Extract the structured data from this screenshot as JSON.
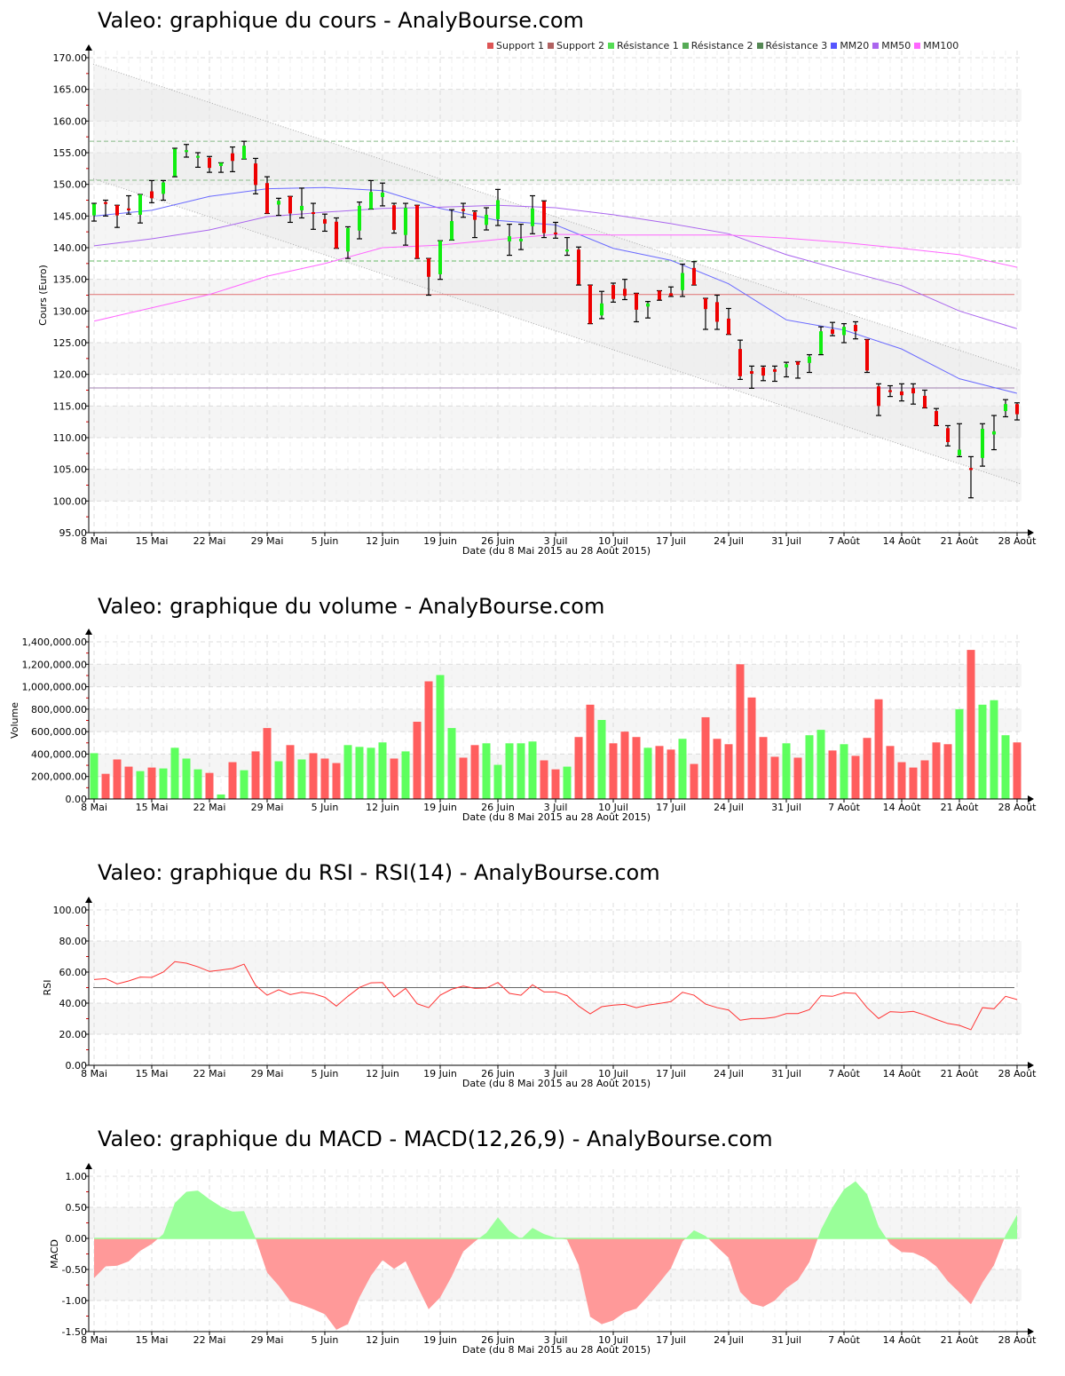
{
  "titles": {
    "price": "Valeo: graphique du cours - AnalyBourse.com",
    "volume": "Valeo: graphique du volume - AnalyBourse.com",
    "rsi": "Valeo: graphique du RSI - RSI(14) - AnalyBourse.com",
    "macd": "Valeo: graphique du MACD - MACD(12,26,9) - AnalyBourse.com"
  },
  "legend": [
    {
      "label": "Support 1",
      "color": "#dd5555"
    },
    {
      "label": "Support 2",
      "color": "#b06262"
    },
    {
      "label": "Résistance 1",
      "color": "#55dd55"
    },
    {
      "label": "Résistance 2",
      "color": "#55aa55"
    },
    {
      "label": "Résistance 3",
      "color": "#558855"
    },
    {
      "label": "MM20",
      "color": "#5555ff"
    },
    {
      "label": "MM50",
      "color": "#aa66ee"
    },
    {
      "label": "MM100",
      "color": "#ff66ff"
    }
  ],
  "chart_data": [
    {
      "type": "candlestick",
      "title": "Valeo: graphique du cours - AnalyBourse.com",
      "xlabel": "Date (du 8 Mai 2015 au 28 Août 2015)",
      "ylabel": "Cours (Euro)",
      "ylim": [
        95,
        170
      ],
      "yticks": [
        "170.00",
        "165.00",
        "160.00",
        "155.00",
        "150.00",
        "145.00",
        "140.00",
        "135.00",
        "130.00",
        "125.00",
        "120.00",
        "115.00",
        "110.00",
        "105.00",
        "100.00",
        "95.00"
      ],
      "x_ticks": [
        "8 Mai",
        "15 Mai",
        "22 Mai",
        "29 Mai",
        "5 Juin",
        "12 Juin",
        "19 Juin",
        "26 Juin",
        "3 Juil",
        "10 Juil",
        "17 Juil",
        "24 Juil",
        "31 Juil",
        "7 Août",
        "14 Août",
        "21 Août",
        "28 Août"
      ],
      "ohlc_fields": [
        "open",
        "high",
        "low",
        "close"
      ],
      "ohlc": [
        [
          145.1,
          147.0,
          144.2,
          146.9
        ],
        [
          147.2,
          147.5,
          145.0,
          146.9
        ],
        [
          146.7,
          146.7,
          143.2,
          145.1
        ],
        [
          146.2,
          148.2,
          145.3,
          145.9
        ],
        [
          145.2,
          148.4,
          143.9,
          148.4
        ],
        [
          148.9,
          150.6,
          147.1,
          147.8
        ],
        [
          148.5,
          150.6,
          147.5,
          150.3
        ],
        [
          151.3,
          155.7,
          151.2,
          155.6
        ],
        [
          155.1,
          156.3,
          154.3,
          155.4
        ],
        [
          154.2,
          155.0,
          152.7,
          154.5
        ],
        [
          154.2,
          154.4,
          151.9,
          152.6
        ],
        [
          152.9,
          153.4,
          151.9,
          153.4
        ],
        [
          154.9,
          155.9,
          152.0,
          153.7
        ],
        [
          154.0,
          156.8,
          154.0,
          156.1
        ],
        [
          153.3,
          154.1,
          148.5,
          149.9
        ],
        [
          150.2,
          151.2,
          145.4,
          145.4
        ],
        [
          146.8,
          147.8,
          145.1,
          147.4
        ],
        [
          148.1,
          148.1,
          144.0,
          145.4
        ],
        [
          145.9,
          149.4,
          144.7,
          146.6
        ],
        [
          145.6,
          147.0,
          142.9,
          145.4
        ],
        [
          144.5,
          145.3,
          142.6,
          143.8
        ],
        [
          144.1,
          144.7,
          139.9,
          139.9
        ],
        [
          139.4,
          143.3,
          138.3,
          143.1
        ],
        [
          142.7,
          147.2,
          141.4,
          146.6
        ],
        [
          146.1,
          150.6,
          146.1,
          148.8
        ],
        [
          148.0,
          150.2,
          146.6,
          148.7
        ],
        [
          146.7,
          147.0,
          142.3,
          142.8
        ],
        [
          142.0,
          147.0,
          140.4,
          146.3
        ],
        [
          146.7,
          146.7,
          138.3,
          138.3
        ],
        [
          138.3,
          138.3,
          132.5,
          135.4
        ],
        [
          135.8,
          141.1,
          135.0,
          141.1
        ],
        [
          141.2,
          146.0,
          141.2,
          144.2
        ],
        [
          146.1,
          147.0,
          144.8,
          145.8
        ],
        [
          145.6,
          145.8,
          141.6,
          144.4
        ],
        [
          143.6,
          146.3,
          142.8,
          145.2
        ],
        [
          144.5,
          149.2,
          143.5,
          147.5
        ],
        [
          141.0,
          143.7,
          138.8,
          141.8
        ],
        [
          141.0,
          143.7,
          139.7,
          141.4
        ],
        [
          143.4,
          148.2,
          142.2,
          146.2
        ],
        [
          147.3,
          147.4,
          141.6,
          142.3
        ],
        [
          142.4,
          144.0,
          141.5,
          142.2
        ],
        [
          139.4,
          141.6,
          138.8,
          139.7
        ],
        [
          139.7,
          140.1,
          134.1,
          134.2
        ],
        [
          134.1,
          134.1,
          128.0,
          128.0
        ],
        [
          129.3,
          133.1,
          128.8,
          131.2
        ],
        [
          134.1,
          134.4,
          131.4,
          131.9
        ],
        [
          133.5,
          135.0,
          131.8,
          132.4
        ],
        [
          132.8,
          132.8,
          128.3,
          130.2
        ],
        [
          130.7,
          131.5,
          128.9,
          131.2
        ],
        [
          133.2,
          133.2,
          131.7,
          131.8
        ],
        [
          132.8,
          133.8,
          132.3,
          132.4
        ],
        [
          133.3,
          137.4,
          132.3,
          136.0
        ],
        [
          136.8,
          137.8,
          134.1,
          134.1
        ],
        [
          132.0,
          132.0,
          127.1,
          130.3
        ],
        [
          131.4,
          132.5,
          127.1,
          128.3
        ],
        [
          128.8,
          130.4,
          126.3,
          126.3
        ],
        [
          124.0,
          125.4,
          119.2,
          119.7
        ],
        [
          120.5,
          121.3,
          117.8,
          120.1
        ],
        [
          121.1,
          121.3,
          119.0,
          119.8
        ],
        [
          120.8,
          121.3,
          118.9,
          120.4
        ],
        [
          121.1,
          121.9,
          119.6,
          121.6
        ],
        [
          122.0,
          122.0,
          119.4,
          121.5
        ],
        [
          121.8,
          123.1,
          120.3,
          122.8
        ],
        [
          123.2,
          127.5,
          123.1,
          126.8
        ],
        [
          127.1,
          128.2,
          126.1,
          126.4
        ],
        [
          126.2,
          128.0,
          125.0,
          127.5
        ],
        [
          127.8,
          128.3,
          125.6,
          126.8
        ],
        [
          125.5,
          125.5,
          120.3,
          120.6
        ],
        [
          118.1,
          118.5,
          113.5,
          115.0
        ],
        [
          117.5,
          118.2,
          116.5,
          117.2
        ],
        [
          117.3,
          118.5,
          115.8,
          116.7
        ],
        [
          117.8,
          118.5,
          115.3,
          117.0
        ],
        [
          116.6,
          117.5,
          114.7,
          114.7
        ],
        [
          114.2,
          114.6,
          111.9,
          111.9
        ],
        [
          111.5,
          111.9,
          108.7,
          109.3
        ],
        [
          107.2,
          112.2,
          107.0,
          108.1
        ],
        [
          105.2,
          107.0,
          100.5,
          104.9
        ],
        [
          106.8,
          112.2,
          105.5,
          111.4
        ],
        [
          110.5,
          113.5,
          108.1,
          111.0
        ],
        [
          114.2,
          116.0,
          113.3,
          115.3
        ],
        [
          115.3,
          115.5,
          112.8,
          113.7
        ]
      ],
      "moving_averages_every_5_days": {
        "MM20": [
          145.0,
          145.9,
          148.1,
          149.3,
          149.5,
          149.0,
          146.2,
          144.3,
          143.6,
          139.9,
          138.0,
          134.3,
          128.6,
          127.0,
          124.0,
          119.3,
          117.0
        ],
        "MM50": [
          140.3,
          141.4,
          142.8,
          144.9,
          145.6,
          146.2,
          146.4,
          146.7,
          146.3,
          145.2,
          143.8,
          142.2,
          138.9,
          136.4,
          134.0,
          130.0,
          127.2
        ],
        "MM100": [
          128.4,
          130.5,
          132.6,
          135.5,
          137.5,
          140.0,
          140.4,
          141.3,
          142.1,
          142.0,
          142.0,
          142.0,
          141.5,
          140.8,
          139.9,
          138.9,
          136.9
        ]
      },
      "levels": {
        "Support 1": 132.6,
        "Support 2": 117.85,
        "Résistance 1": 137.9,
        "Résistance 2": 150.65,
        "Résistance 3": 156.8
      },
      "trend_channel": {
        "upper": [
          169.0,
          120.6
        ],
        "lower": [
          150.9,
          102.7
        ]
      },
      "grid": true
    },
    {
      "type": "bar",
      "title": "Valeo: graphique du volume - AnalyBourse.com",
      "xlabel": "Date (du 8 Mai 2015 au 28 Août 2015)",
      "ylabel": "Volume",
      "ylim": [
        0,
        1400000
      ],
      "yticks": [
        "1,400,000.00",
        "1,200,000.00",
        "1,000,000.00",
        "800,000.00",
        "600,000.00",
        "400,000.00",
        "200,000.00",
        "0.00"
      ],
      "x_ticks": [
        "8 Mai",
        "15 Mai",
        "22 Mai",
        "29 Mai",
        "5 Juin",
        "12 Juin",
        "19 Juin",
        "26 Juin",
        "3 Juil",
        "10 Juil",
        "17 Juil",
        "24 Juil",
        "31 Juil",
        "7 Août",
        "14 Août",
        "21 Août",
        "28 Août"
      ],
      "values": [
        408000,
        224000,
        352000,
        288000,
        248000,
        280000,
        272000,
        456000,
        360000,
        264000,
        232000,
        40000,
        328000,
        256000,
        424000,
        632000,
        336000,
        480000,
        352000,
        408000,
        360000,
        320000,
        480000,
        464000,
        456000,
        504000,
        360000,
        424000,
        688000,
        1048000,
        1104000,
        632000,
        368000,
        480000,
        496000,
        304000,
        496000,
        496000,
        512000,
        344000,
        264000,
        288000,
        552000,
        840000,
        704000,
        496000,
        600000,
        552000,
        456000,
        472000,
        440000,
        536000,
        312000,
        728000,
        536000,
        488000,
        1200000,
        904000,
        552000,
        376000,
        496000,
        368000,
        568000,
        616000,
        432000,
        488000,
        384000,
        544000,
        888000,
        472000,
        328000,
        280000,
        344000,
        504000,
        488000,
        800000,
        1328000,
        840000,
        880000,
        568000,
        504000
      ],
      "grid": true
    },
    {
      "type": "line",
      "title": "Valeo: graphique du RSI - RSI(14) - AnalyBourse.com",
      "xlabel": "Date (du 8 Mai 2015 au 28 Août 2015)",
      "ylabel": "RSI",
      "ylim": [
        0,
        100
      ],
      "reference": 50,
      "yticks": [
        "100.00",
        "80.00",
        "60.00",
        "40.00",
        "20.00",
        "0.00"
      ],
      "x_ticks": [
        "8 Mai",
        "15 Mai",
        "22 Mai",
        "29 Mai",
        "5 Juin",
        "12 Juin",
        "19 Juin",
        "26 Juin",
        "3 Juil",
        "10 Juil",
        "17 Juil",
        "24 Juil",
        "31 Juil",
        "7 Août",
        "14 Août",
        "21 Août",
        "28 Août"
      ],
      "values": [
        55.2,
        55.8,
        52.4,
        54.3,
        56.8,
        56.6,
        60.0,
        66.7,
        65.7,
        63.4,
        60.4,
        61.3,
        62.3,
        65.1,
        51.4,
        45.1,
        48.6,
        45.5,
        47.0,
        46.1,
        43.8,
        38.1,
        44.4,
        50.1,
        53.1,
        53.3,
        44.0,
        49.5,
        39.6,
        37.1,
        45.1,
        49.0,
        51.0,
        49.5,
        49.7,
        53.3,
        46.3,
        45.1,
        51.8,
        47.2,
        47.2,
        44.8,
        38.1,
        33.1,
        37.7,
        38.7,
        39.2,
        37.1,
        38.7,
        39.8,
        41.0,
        47.0,
        45.1,
        39.4,
        37.1,
        35.6,
        29.0,
        30.1,
        30.1,
        30.9,
        33.3,
        33.3,
        35.8,
        44.8,
        44.4,
        46.7,
        46.3,
        37.1,
        30.1,
        34.5,
        34.1,
        34.7,
        32.4,
        29.5,
        26.9,
        25.7,
        22.9,
        37.1,
        36.4,
        44.4,
        42.3
      ],
      "grid": true
    },
    {
      "type": "area",
      "title": "Valeo: graphique du MACD - MACD(12,26,9) - AnalyBourse.com",
      "xlabel": "Date (du 8 Mai 2015 au 28 Août 2015)",
      "ylabel": "MACD",
      "ylim": [
        -1.5,
        1.0
      ],
      "yticks": [
        "1.00",
        "0.50",
        "0.00",
        "-0.50",
        "-1.00",
        "-1.50"
      ],
      "x_ticks": [
        "8 Mai",
        "15 Mai",
        "22 Mai",
        "29 Mai",
        "5 Juin",
        "12 Juin",
        "19 Juin",
        "26 Juin",
        "3 Juil",
        "10 Juil",
        "17 Juil",
        "24 Juil",
        "31 Juil",
        "7 Août",
        "14 Août",
        "21 Août",
        "28 Août"
      ],
      "values": [
        -0.64,
        -0.45,
        -0.44,
        -0.37,
        -0.2,
        -0.09,
        0.07,
        0.57,
        0.75,
        0.77,
        0.63,
        0.51,
        0.43,
        0.44,
        0.0,
        -0.55,
        -0.76,
        -1.01,
        -1.07,
        -1.14,
        -1.22,
        -1.47,
        -1.38,
        -0.95,
        -0.6,
        -0.35,
        -0.49,
        -0.37,
        -0.76,
        -1.14,
        -0.95,
        -0.61,
        -0.21,
        -0.05,
        0.09,
        0.34,
        0.12,
        -0.01,
        0.17,
        0.07,
        0.01,
        -0.02,
        -0.43,
        -1.26,
        -1.38,
        -1.32,
        -1.19,
        -1.13,
        -0.93,
        -0.71,
        -0.48,
        -0.05,
        0.13,
        0.04,
        -0.14,
        -0.31,
        -0.86,
        -1.05,
        -1.1,
        -1.0,
        -0.8,
        -0.67,
        -0.38,
        0.14,
        0.5,
        0.79,
        0.92,
        0.71,
        0.19,
        -0.09,
        -0.22,
        -0.23,
        -0.31,
        -0.45,
        -0.69,
        -0.87,
        -1.06,
        -0.71,
        -0.43,
        0.05,
        0.38
      ],
      "positive_color": "#99ff99",
      "negative_color": "#ff9999",
      "grid": true
    }
  ]
}
